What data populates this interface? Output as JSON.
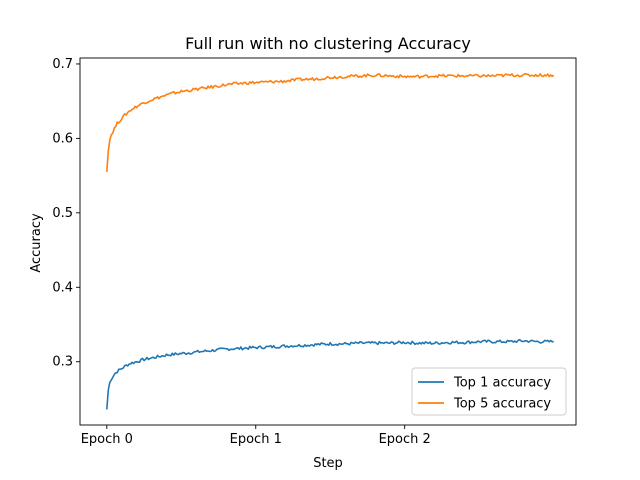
{
  "chart_data": {
    "type": "line",
    "title": "Full run with no clustering Accuracy",
    "xlabel": "Step",
    "ylabel": "Accuracy",
    "xlim": [
      -0.18,
      3.15
    ],
    "ylim": [
      0.215,
      0.708
    ],
    "x_ticks": [
      {
        "value": 0,
        "label": "Epoch 0"
      },
      {
        "value": 1,
        "label": "Epoch 1"
      },
      {
        "value": 2,
        "label": "Epoch 2"
      }
    ],
    "y_ticks": [
      0.3,
      0.4,
      0.5,
      0.6,
      0.7
    ],
    "legend": {
      "placement": "lower-right"
    },
    "grid": false,
    "series": [
      {
        "name": "Top 1 accuracy",
        "color": "#1f77b4",
        "x": [
          0.0,
          0.01,
          0.02,
          0.03,
          0.05,
          0.07,
          0.1,
          0.13,
          0.16,
          0.2,
          0.25,
          0.3,
          0.35,
          0.4,
          0.45,
          0.5,
          0.6,
          0.7,
          0.8,
          0.9,
          1.0,
          1.1,
          1.2,
          1.3,
          1.4,
          1.5,
          1.6,
          1.7,
          1.8,
          1.9,
          2.0,
          2.1,
          2.2,
          2.3,
          2.4,
          2.5,
          2.6,
          2.7,
          2.8,
          2.9,
          3.0
        ],
        "values": [
          0.236,
          0.262,
          0.272,
          0.277,
          0.283,
          0.287,
          0.291,
          0.295,
          0.298,
          0.3,
          0.303,
          0.305,
          0.307,
          0.309,
          0.31,
          0.311,
          0.313,
          0.315,
          0.317,
          0.318,
          0.319,
          0.32,
          0.321,
          0.322,
          0.323,
          0.324,
          0.324,
          0.325,
          0.325,
          0.325,
          0.326,
          0.325,
          0.325,
          0.326,
          0.326,
          0.327,
          0.327,
          0.327,
          0.328,
          0.327,
          0.327
        ]
      },
      {
        "name": "Top 5 accuracy",
        "color": "#ff7f0e",
        "x": [
          0.0,
          0.01,
          0.02,
          0.03,
          0.05,
          0.07,
          0.1,
          0.13,
          0.16,
          0.2,
          0.25,
          0.3,
          0.35,
          0.4,
          0.45,
          0.5,
          0.6,
          0.7,
          0.8,
          0.9,
          1.0,
          1.1,
          1.2,
          1.3,
          1.4,
          1.5,
          1.6,
          1.7,
          1.8,
          1.9,
          2.0,
          2.1,
          2.2,
          2.3,
          2.4,
          2.5,
          2.6,
          2.7,
          2.8,
          2.9,
          3.0
        ],
        "values": [
          0.555,
          0.585,
          0.598,
          0.605,
          0.613,
          0.62,
          0.627,
          0.633,
          0.638,
          0.643,
          0.648,
          0.652,
          0.655,
          0.658,
          0.661,
          0.663,
          0.666,
          0.669,
          0.672,
          0.674,
          0.675,
          0.676,
          0.677,
          0.679,
          0.68,
          0.682,
          0.683,
          0.684,
          0.685,
          0.684,
          0.683,
          0.683,
          0.684,
          0.684,
          0.684,
          0.684,
          0.684,
          0.685,
          0.685,
          0.685,
          0.685
        ]
      }
    ]
  }
}
